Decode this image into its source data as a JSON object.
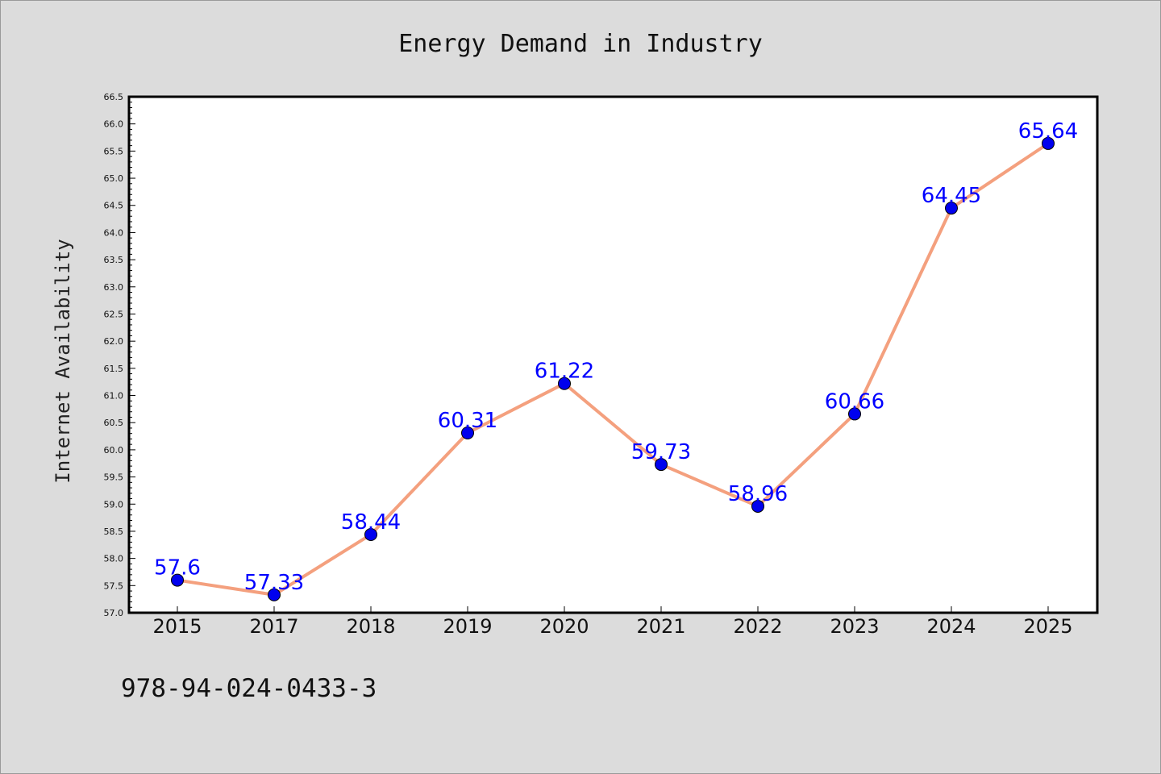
{
  "chart_data": {
    "type": "line",
    "title": "Energy Demand in Industry",
    "xlabel": "",
    "ylabel": "Internet Availability",
    "categories": [
      "2015",
      "2017",
      "2018",
      "2019",
      "2020",
      "2021",
      "2022",
      "2023",
      "2024",
      "2025"
    ],
    "series": [
      {
        "values": [
          57.6,
          57.33,
          58.44,
          60.31,
          61.22,
          59.73,
          58.96,
          60.66,
          64.45,
          65.64
        ],
        "labels": [
          "57.6",
          "57.33",
          "58.44",
          "60.31",
          "61.22",
          "59.73",
          "58.96",
          "60.66",
          "64.45",
          "65.64"
        ],
        "line_color": "#f4a07e",
        "marker_color": "#0000ee"
      }
    ],
    "ylim": [
      57.0,
      66.5
    ],
    "yticks": [
      "57.0",
      "57.5",
      "58.0",
      "58.5",
      "59.0",
      "59.5",
      "60.0",
      "60.5",
      "61.0",
      "61.5",
      "62.0",
      "62.5",
      "63.0",
      "63.5",
      "64.0",
      "64.5",
      "65.0",
      "65.5",
      "66.0",
      "66.5"
    ],
    "grid": false,
    "legend": "none"
  },
  "footer": {
    "isbn": "978-94-024-0433-3"
  },
  "colors": {
    "background": "#dcdcdc",
    "plot_background": "#ffffff",
    "label_color": "#0000ff"
  }
}
